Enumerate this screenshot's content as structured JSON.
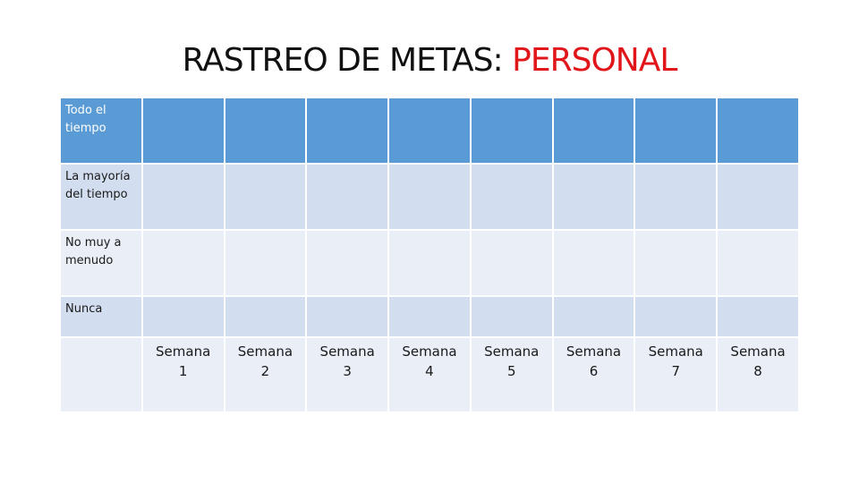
{
  "title": {
    "prefix": "RASTREO DE METAS:",
    "accent": "PERSONAL",
    "accent_color": "#e0161b"
  },
  "rows": [
    {
      "label": "Todo el tiempo"
    },
    {
      "label": "La mayoría del tiempo"
    },
    {
      "label": "No muy a menudo"
    },
    {
      "label": "Nunca"
    }
  ],
  "weeks": [
    {
      "word": "Semana",
      "num": "1"
    },
    {
      "word": "Semana",
      "num": "2"
    },
    {
      "word": "Semana",
      "num": "3"
    },
    {
      "word": "Semana",
      "num": "4"
    },
    {
      "word": "Semana",
      "num": "5"
    },
    {
      "word": "Semana",
      "num": "6"
    },
    {
      "word": "Semana",
      "num": "7"
    },
    {
      "word": "Semana",
      "num": "8"
    }
  ],
  "colors": {
    "header_fill": "#5b9bd5",
    "band_dark": "#d2deef",
    "band_light": "#e9eef7"
  }
}
